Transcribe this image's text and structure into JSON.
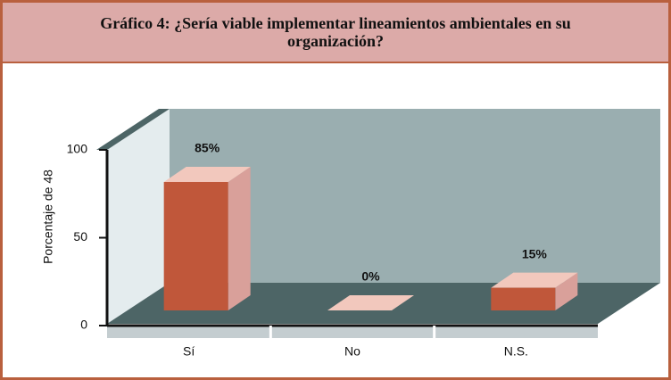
{
  "chart_data": {
    "type": "bar3d",
    "title": "Gráfico 4: ¿Sería viable implementar lineamientos ambientales en su organización?",
    "y_label": "Porcentaje de 48",
    "categories": [
      "Sí",
      "No",
      "N.S."
    ],
    "values": [
      85,
      0,
      15
    ],
    "value_labels": [
      "85%",
      "0%",
      "15%"
    ],
    "color": "#c0573a",
    "ylim": [
      0,
      100
    ],
    "yticks": [
      0,
      50,
      100
    ]
  }
}
